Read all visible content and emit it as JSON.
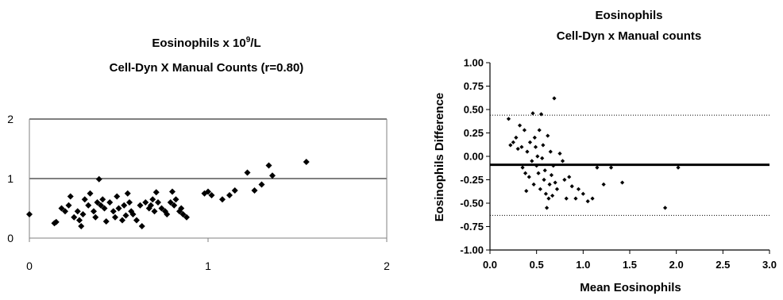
{
  "chart_data": [
    {
      "type": "scatter",
      "title_line1": "Eosinophils x 10",
      "title_sup": "9",
      "title_line1_suffix": "/L",
      "title_line2": "Cell-Dyn X Manual Counts (r=0.80)",
      "xlabel": "",
      "ylabel": "",
      "xlim": [
        0,
        2
      ],
      "ylim": [
        0,
        2
      ],
      "x_ticks": [
        "0",
        "1",
        "2"
      ],
      "y_ticks": [
        "0",
        "1",
        "2"
      ],
      "grid": "horizontal",
      "marker": "diamond",
      "points": [
        [
          0.0,
          0.4
        ],
        [
          0.14,
          0.25
        ],
        [
          0.15,
          0.27
        ],
        [
          0.18,
          0.5
        ],
        [
          0.2,
          0.45
        ],
        [
          0.22,
          0.55
        ],
        [
          0.23,
          0.7
        ],
        [
          0.25,
          0.35
        ],
        [
          0.27,
          0.45
        ],
        [
          0.28,
          0.3
        ],
        [
          0.29,
          0.2
        ],
        [
          0.3,
          0.4
        ],
        [
          0.31,
          0.65
        ],
        [
          0.33,
          0.55
        ],
        [
          0.34,
          0.75
        ],
        [
          0.36,
          0.45
        ],
        [
          0.37,
          0.35
        ],
        [
          0.38,
          0.6
        ],
        [
          0.39,
          0.99
        ],
        [
          0.4,
          0.55
        ],
        [
          0.41,
          0.65
        ],
        [
          0.42,
          0.5
        ],
        [
          0.43,
          0.28
        ],
        [
          0.45,
          0.6
        ],
        [
          0.47,
          0.45
        ],
        [
          0.48,
          0.35
        ],
        [
          0.49,
          0.7
        ],
        [
          0.5,
          0.5
        ],
        [
          0.52,
          0.3
        ],
        [
          0.53,
          0.55
        ],
        [
          0.54,
          0.38
        ],
        [
          0.55,
          0.75
        ],
        [
          0.56,
          0.6
        ],
        [
          0.57,
          0.45
        ],
        [
          0.58,
          0.4
        ],
        [
          0.6,
          0.3
        ],
        [
          0.62,
          0.55
        ],
        [
          0.63,
          0.2
        ],
        [
          0.65,
          0.6
        ],
        [
          0.67,
          0.5
        ],
        [
          0.68,
          0.55
        ],
        [
          0.69,
          0.65
        ],
        [
          0.7,
          0.45
        ],
        [
          0.71,
          0.77
        ],
        [
          0.72,
          0.6
        ],
        [
          0.74,
          0.5
        ],
        [
          0.76,
          0.45
        ],
        [
          0.77,
          0.4
        ],
        [
          0.79,
          0.6
        ],
        [
          0.8,
          0.78
        ],
        [
          0.81,
          0.55
        ],
        [
          0.82,
          0.65
        ],
        [
          0.84,
          0.45
        ],
        [
          0.85,
          0.5
        ],
        [
          0.86,
          0.4
        ],
        [
          0.88,
          0.35
        ],
        [
          0.98,
          0.75
        ],
        [
          1.0,
          0.78
        ],
        [
          1.02,
          0.72
        ],
        [
          1.08,
          0.65
        ],
        [
          1.12,
          0.72
        ],
        [
          1.15,
          0.8
        ],
        [
          1.22,
          1.1
        ],
        [
          1.26,
          0.8
        ],
        [
          1.3,
          0.9
        ],
        [
          1.34,
          1.22
        ],
        [
          1.36,
          1.05
        ],
        [
          1.55,
          1.28
        ]
      ]
    },
    {
      "type": "scatter",
      "title_line1": "Eosinophils",
      "title_line2": "Cell-Dyn x Manual counts",
      "xlabel": "Mean Eosinophils",
      "ylabel": "Eosinophils Difference",
      "xlim": [
        0,
        3
      ],
      "ylim": [
        -1,
        1
      ],
      "x_ticks": [
        "0.0",
        "0.5",
        "1.0",
        "1.5",
        "2.0",
        "2.5",
        "3.0"
      ],
      "y_ticks": [
        "-1.00",
        "-0.75",
        "-0.50",
        "-0.25",
        "0.00",
        "0.25",
        "0.50",
        "0.75",
        "1.00"
      ],
      "grid": "none",
      "marker": "diamond",
      "mean_line": -0.09,
      "upper_limit": 0.44,
      "lower_limit": -0.63,
      "points": [
        [
          0.2,
          0.4
        ],
        [
          0.22,
          0.12
        ],
        [
          0.25,
          0.15
        ],
        [
          0.28,
          0.2
        ],
        [
          0.3,
          0.08
        ],
        [
          0.32,
          0.33
        ],
        [
          0.34,
          0.1
        ],
        [
          0.35,
          -0.12
        ],
        [
          0.37,
          0.28
        ],
        [
          0.38,
          -0.18
        ],
        [
          0.39,
          -0.37
        ],
        [
          0.4,
          0.05
        ],
        [
          0.42,
          -0.22
        ],
        [
          0.43,
          0.15
        ],
        [
          0.45,
          -0.05
        ],
        [
          0.46,
          0.46
        ],
        [
          0.47,
          -0.3
        ],
        [
          0.48,
          0.2
        ],
        [
          0.49,
          0.1
        ],
        [
          0.5,
          -0.1
        ],
        [
          0.51,
          0.0
        ],
        [
          0.52,
          -0.18
        ],
        [
          0.53,
          0.28
        ],
        [
          0.54,
          -0.35
        ],
        [
          0.55,
          0.45
        ],
        [
          0.56,
          -0.02
        ],
        [
          0.57,
          0.12
        ],
        [
          0.58,
          -0.25
        ],
        [
          0.59,
          -0.15
        ],
        [
          0.6,
          -0.4
        ],
        [
          0.61,
          -0.55
        ],
        [
          0.62,
          0.22
        ],
        [
          0.63,
          -0.45
        ],
        [
          0.64,
          -0.3
        ],
        [
          0.65,
          0.05
        ],
        [
          0.66,
          -0.2
        ],
        [
          0.67,
          -0.42
        ],
        [
          0.68,
          -0.1
        ],
        [
          0.69,
          0.62
        ],
        [
          0.7,
          -0.28
        ],
        [
          0.72,
          -0.35
        ],
        [
          0.75,
          0.03
        ],
        [
          0.78,
          -0.05
        ],
        [
          0.8,
          -0.25
        ],
        [
          0.82,
          -0.45
        ],
        [
          0.85,
          -0.22
        ],
        [
          0.88,
          -0.32
        ],
        [
          0.92,
          -0.45
        ],
        [
          0.95,
          -0.35
        ],
        [
          1.0,
          -0.4
        ],
        [
          1.05,
          -0.48
        ],
        [
          1.1,
          -0.45
        ],
        [
          1.15,
          -0.12
        ],
        [
          1.22,
          -0.3
        ],
        [
          1.3,
          -0.12
        ],
        [
          1.42,
          -0.28
        ],
        [
          1.88,
          -0.55
        ],
        [
          2.02,
          -0.12
        ]
      ]
    }
  ]
}
